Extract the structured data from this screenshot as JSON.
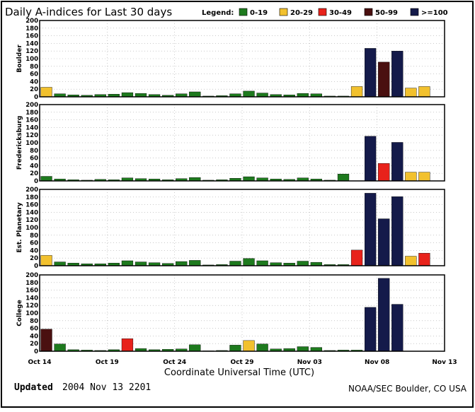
{
  "title": "Daily A-indices for Last 30 days",
  "legend": {
    "label": "Legend:",
    "items": [
      {
        "label": "0-19",
        "color": "#1e7a1e"
      },
      {
        "label": "20-29",
        "color": "#f2c12e"
      },
      {
        "label": "30-49",
        "color": "#e8221b"
      },
      {
        "label": "50-99",
        "color": "#4a1010"
      },
      {
        "label": ">=100",
        "color": "#141a4a"
      }
    ]
  },
  "xlabel": "Coordinate Universal Time (UTC)",
  "footer": {
    "updated_label": "Updated",
    "updated_value": "2004 Nov 13 2201",
    "credit": "NOAA/SEC Boulder, CO USA"
  },
  "chart_data": {
    "type": "bar",
    "x_tick_labels": [
      "Oct 14",
      "Oct 19",
      "Oct 24",
      "Oct 29",
      "Nov 03",
      "Nov 08",
      "Nov 13"
    ],
    "ylim": [
      0,
      200
    ],
    "y_ticks": [
      0,
      20,
      40,
      60,
      80,
      100,
      120,
      140,
      160,
      180,
      200
    ],
    "grid": true,
    "days": 30,
    "panels": [
      {
        "name": "Boulder",
        "values": [
          25,
          8,
          5,
          4,
          6,
          7,
          11,
          9,
          6,
          4,
          8,
          13,
          2,
          3,
          8,
          15,
          10,
          6,
          5,
          9,
          8,
          2,
          2,
          27,
          127,
          91,
          120,
          23,
          27,
          0
        ]
      },
      {
        "name": "Fredericksburg",
        "values": [
          12,
          5,
          3,
          2,
          4,
          3,
          8,
          6,
          5,
          3,
          6,
          9,
          2,
          3,
          7,
          11,
          8,
          5,
          4,
          8,
          5,
          2,
          18,
          0,
          117,
          46,
          101,
          23,
          23,
          0
        ]
      },
      {
        "name": "Est. Planetary",
        "values": [
          27,
          10,
          7,
          5,
          5,
          7,
          13,
          10,
          8,
          6,
          11,
          14,
          2,
          3,
          12,
          19,
          13,
          8,
          7,
          12,
          9,
          3,
          3,
          41,
          190,
          123,
          181,
          25,
          33,
          0
        ]
      },
      {
        "name": "College",
        "values": [
          58,
          19,
          4,
          3,
          2,
          4,
          33,
          7,
          4,
          5,
          6,
          17,
          1,
          2,
          16,
          28,
          19,
          6,
          7,
          12,
          10,
          2,
          3,
          3,
          115,
          191,
          123,
          0,
          0,
          0
        ]
      }
    ]
  }
}
